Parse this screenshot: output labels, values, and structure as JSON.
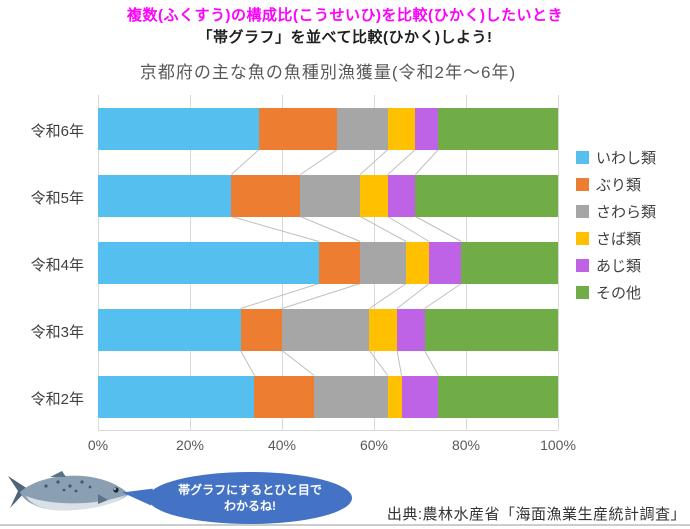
{
  "header": {
    "line1": "複数(ふくすう)の構成比(こうせいひ)を比較(ひかく)したいとき",
    "line2": "「帯グラフ」を並べて比較(ひかく)しよう!",
    "line1_color": "#ff00ff",
    "line2_color": "#1f1f1f"
  },
  "chart_data": {
    "type": "bar",
    "stacked": true,
    "orientation": "horizontal",
    "title": "京都府の主な魚の魚種別漁獲量(令和2年〜6年)",
    "unit": "%",
    "xlim": [
      0,
      100
    ],
    "x_ticks": [
      "0%",
      "20%",
      "40%",
      "60%",
      "80%",
      "100%"
    ],
    "grid": true,
    "legend_position": "right",
    "connector_lines": true,
    "categories": [
      "令和6年",
      "令和5年",
      "令和4年",
      "令和3年",
      "令和2年"
    ],
    "series": [
      {
        "name": "いわし類",
        "color": "#55c0f0",
        "values": [
          35,
          29,
          48,
          31,
          34
        ]
      },
      {
        "name": "ぶり類",
        "color": "#ed7d31",
        "values": [
          17,
          15,
          9,
          9,
          13
        ]
      },
      {
        "name": "さわら類",
        "color": "#a6a6a6",
        "values": [
          11,
          13,
          10,
          19,
          16
        ]
      },
      {
        "name": "さば類",
        "color": "#ffc000",
        "values": [
          6,
          6,
          5,
          6,
          3
        ]
      },
      {
        "name": "あじ類",
        "color": "#bf63e6",
        "values": [
          5,
          6,
          7,
          6,
          8
        ]
      },
      {
        "name": "その他",
        "color": "#70ad47",
        "values": [
          26,
          31,
          21,
          29,
          26
        ]
      }
    ],
    "colors": {
      "gridline": "#d9d9d9",
      "connector_line": "#bfbfbf",
      "axis_text": "#595959"
    }
  },
  "callout": {
    "line1": "帯グラフにするとひと目で",
    "line2": "わかるね!",
    "bubble_color": "#4472c4",
    "text_color": "#ffffff"
  },
  "source": {
    "text": "出典:農林水産省「海面漁業生産統計調査」"
  },
  "images": {
    "fish": "mackerel-fish-photo"
  }
}
